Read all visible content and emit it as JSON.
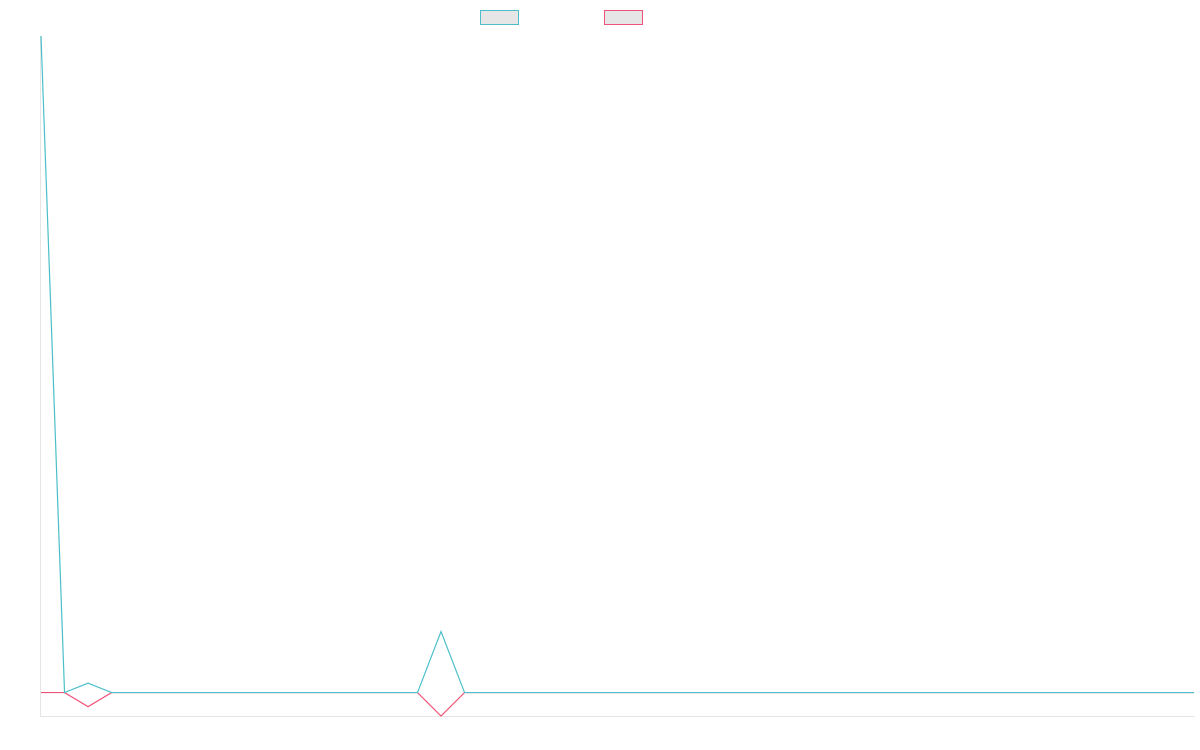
{
  "chart_data": {
    "type": "line",
    "title": "",
    "xlabel": "",
    "ylabel": "",
    "grid": false,
    "legend_placement": "top-center",
    "x_count": 50,
    "ylim": [
      -1.0,
      28.0
    ],
    "series": [
      {
        "color": "#4bbfc9",
        "fill": "#e6e6e6",
        "values": [
          28.0,
          0,
          0.4,
          0,
          0,
          0,
          0,
          0,
          0,
          0,
          0,
          0,
          0,
          0,
          0,
          0,
          0,
          2.6,
          0,
          0,
          0,
          0,
          0,
          0,
          0,
          0,
          0,
          0,
          0,
          0,
          0,
          0,
          0,
          0,
          0,
          0,
          0,
          0,
          0,
          0,
          0,
          0,
          0,
          0,
          0,
          0,
          0,
          0,
          0,
          0
        ]
      },
      {
        "color": "#f0537a",
        "fill": "#e6e6e6",
        "values": [
          0,
          0,
          -0.6,
          0,
          0,
          0,
          0,
          0,
          0,
          0,
          0,
          0,
          0,
          0,
          0,
          0,
          0,
          -1.0,
          0,
          0,
          0,
          0,
          0,
          0,
          0,
          0,
          0,
          0,
          0,
          0,
          0,
          0,
          0,
          0,
          0,
          0,
          0,
          0,
          0,
          0,
          0,
          0,
          0,
          0,
          0,
          0,
          0,
          0,
          0,
          0
        ]
      }
    ]
  }
}
